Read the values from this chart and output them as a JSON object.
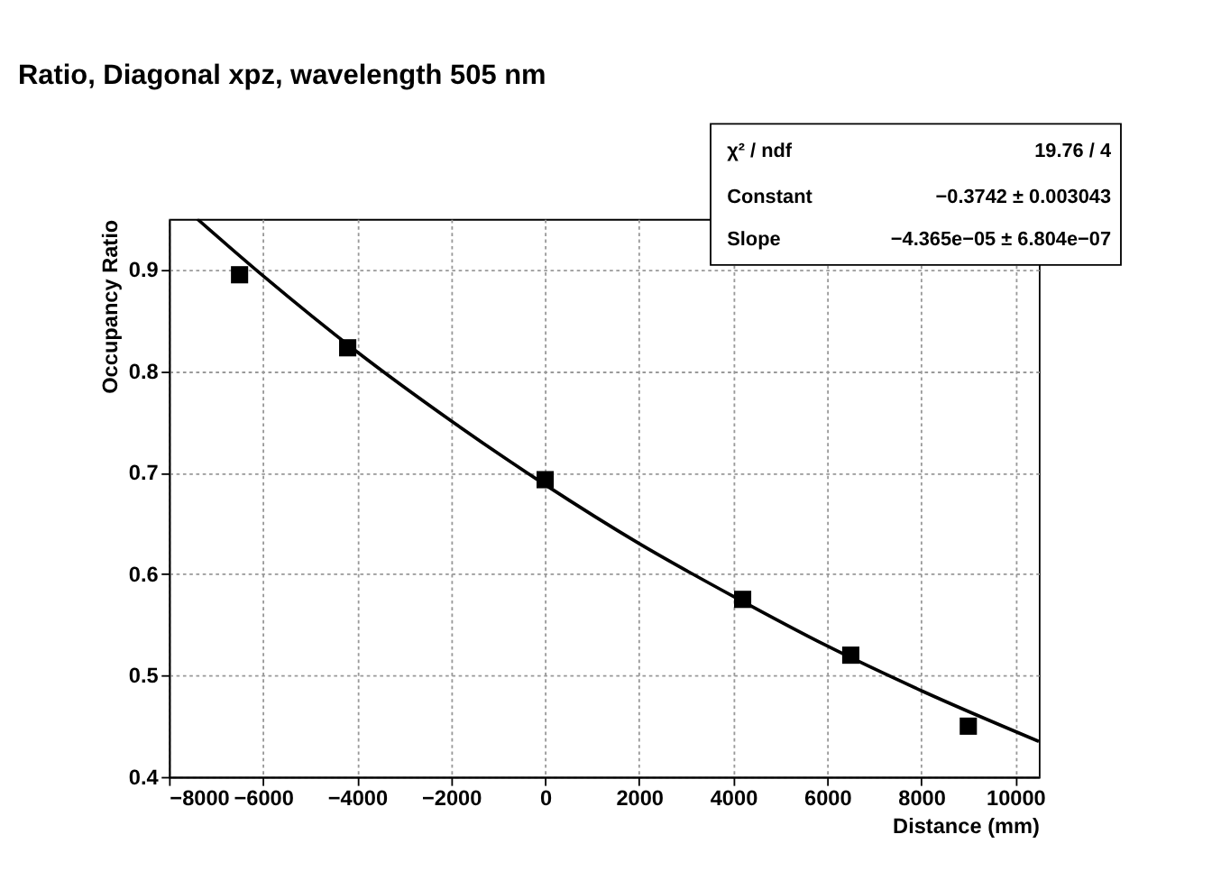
{
  "chart_data": {
    "type": "scatter",
    "title": "Ratio, Diagonal xpz, wavelength 505 nm",
    "xlabel": "Distance (mm)",
    "ylabel": "Occupancy Ratio",
    "annotations": [
      "χ² / ndf",
      "19.76 / 4",
      "Constant",
      "−0.3742 ± 0.003043",
      "Slope",
      "−4.365e−05 ± 6.804e−07"
    ],
    "series": [
      {
        "color": "#000000",
        "marker": "square",
        "x": [
          -6500,
          -4200,
          0,
          4200,
          6500,
          9000
        ],
        "values": [
          0.895,
          0.823,
          0.693,
          0.575,
          0.52,
          0.45
        ]
      },
      {
        "type": "line",
        "color": "#000000",
        "marker": "none",
        "line_style": "solid",
        "x": [
          -7400,
          -6000,
          -4000,
          -2000,
          0,
          2000,
          4000,
          6000,
          8000,
          10500
        ],
        "values": [
          0.95,
          0.894,
          0.819,
          0.751,
          0.688,
          0.63,
          0.578,
          0.529,
          0.485,
          0.435
        ]
      }
    ],
    "xlim": [
      -8000,
      10500
    ],
    "xticks": [
      -8000,
      -6000,
      -4000,
      -2000,
      0,
      2000,
      4000,
      6000,
      8000,
      10000
    ],
    "ylim": [
      0.4,
      0.95
    ],
    "yticks": [
      0.4,
      0.5,
      0.6,
      0.7,
      0.8,
      0.9
    ],
    "grid": true
  }
}
